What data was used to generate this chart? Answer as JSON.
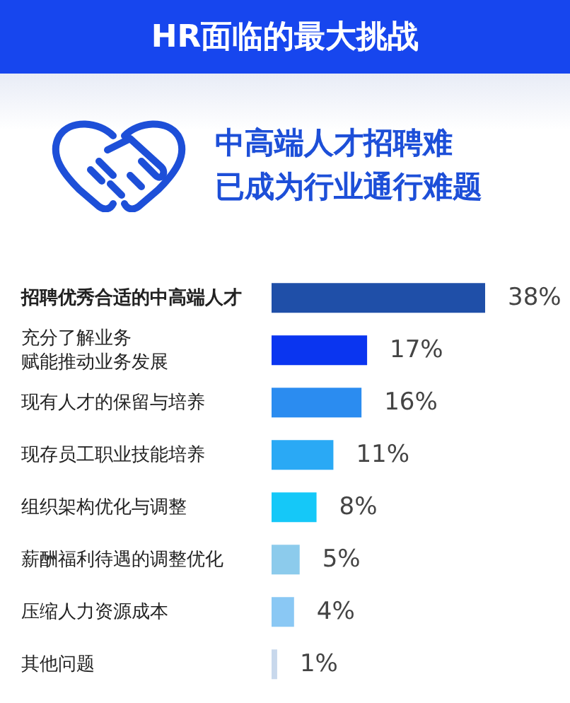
{
  "chart_data": {
    "type": "bar",
    "orientation": "horizontal",
    "title": "HR面临的最大挑战",
    "subtitle": "中高端人才招聘难已成为行业通行难题",
    "categories": [
      "招聘优秀合适的中高端人才",
      "充分了解业务赋能推动业务发展",
      "现有人才的保留与培养",
      "现存员工职业技能培养",
      "组织架构优化与调整",
      "薪酬福利待遇的调整优化",
      "压缩人力资源成本",
      "其他问题"
    ],
    "values": [
      38,
      17,
      16,
      11,
      8,
      5,
      4,
      1
    ],
    "colors": [
      "#1f4fa8",
      "#0a35f0",
      "#2b8cf0",
      "#2aa9f5",
      "#15c8f8",
      "#8ccbec",
      "#8ac8f4",
      "#c8d8ec"
    ],
    "value_labels": [
      "38%",
      "17%",
      "16%",
      "11%",
      "8%",
      "5%",
      "4%",
      "1%"
    ]
  }
}
